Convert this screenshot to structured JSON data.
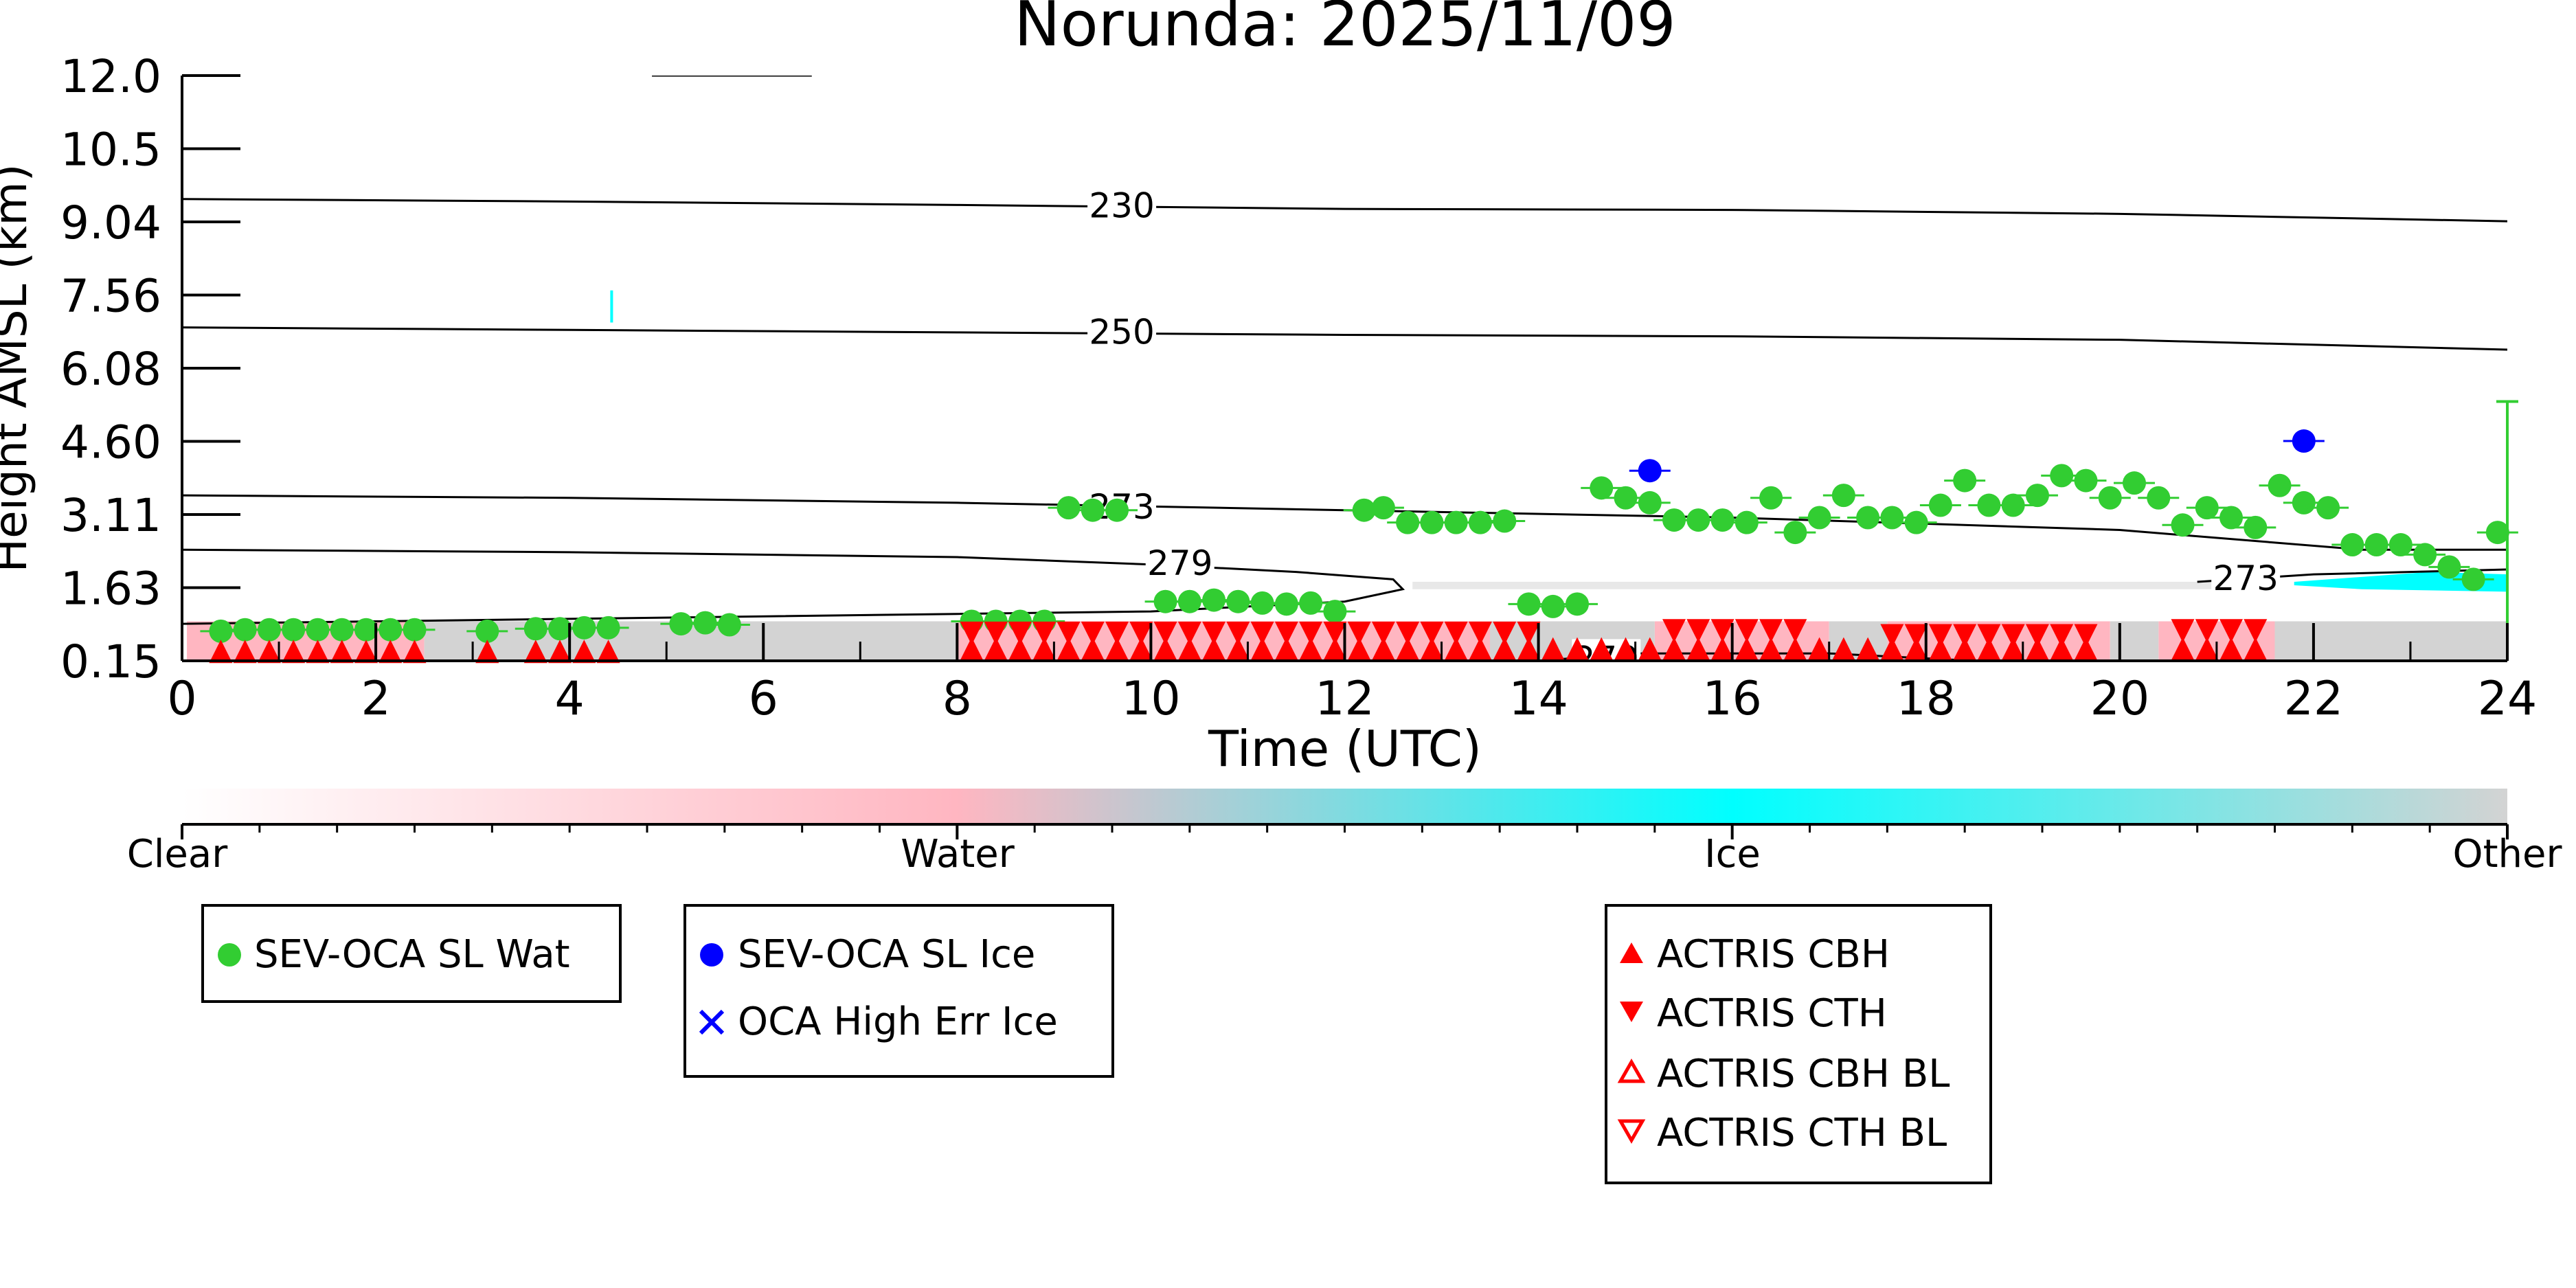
{
  "chart_data": {
    "type": "scatter",
    "title": "Norunda: 2025/11/09",
    "xlabel": "Time (UTC)",
    "ylabel": "Height AMSL (km)",
    "xlim": [
      0,
      24
    ],
    "ylim": [
      0.15,
      12.0
    ],
    "x_ticks": [
      "0",
      "2",
      "4",
      "6",
      "8",
      "10",
      "12",
      "14",
      "16",
      "18",
      "20",
      "22",
      "24"
    ],
    "y_ticks": [
      "0.15",
      "1.63",
      "3.11",
      "4.60",
      "6.08",
      "7.56",
      "9.04",
      "10.5",
      "12.0"
    ],
    "grid": false,
    "colorbar": {
      "labels": [
        "Clear",
        "Water",
        "Ice",
        "Other"
      ],
      "colors": [
        "#ffffff",
        "#ffb6c1",
        "#00ffff",
        "#d3d3d3"
      ]
    },
    "contours": [
      {
        "label": "230",
        "points": [
          [
            0,
            9.5
          ],
          [
            4,
            9.45
          ],
          [
            8,
            9.38
          ],
          [
            12,
            9.3
          ],
          [
            16,
            9.28
          ],
          [
            20,
            9.2
          ],
          [
            24,
            9.05
          ]
        ]
      },
      {
        "label": "250",
        "points": [
          [
            0,
            6.9
          ],
          [
            4,
            6.85
          ],
          [
            8,
            6.8
          ],
          [
            12,
            6.75
          ],
          [
            16,
            6.72
          ],
          [
            20,
            6.65
          ],
          [
            24,
            6.45
          ]
        ]
      },
      {
        "label": "273",
        "points": [
          [
            0,
            3.5
          ],
          [
            4,
            3.45
          ],
          [
            8,
            3.35
          ],
          [
            12,
            3.2
          ],
          [
            16,
            3.05
          ],
          [
            20,
            2.8
          ],
          [
            22.5,
            2.4
          ],
          [
            24,
            2.4
          ]
        ]
      },
      {
        "label": "279",
        "points": [
          [
            0,
            2.4
          ],
          [
            4,
            2.35
          ],
          [
            8,
            2.25
          ],
          [
            10,
            2.1
          ],
          [
            11.5,
            1.95
          ],
          [
            12.5,
            1.8
          ],
          [
            12.6,
            1.6
          ],
          [
            12,
            1.35
          ],
          [
            10,
            1.15
          ],
          [
            8,
            1.1
          ],
          [
            4,
            1.0
          ],
          [
            0,
            0.9
          ]
        ]
      },
      {
        "label": "273",
        "points": [
          [
            20.8,
            1.75
          ],
          [
            22,
            1.9
          ],
          [
            24,
            2.0
          ]
        ]
      },
      {
        "label": "279",
        "points": [
          [
            14,
            0.15
          ],
          [
            15,
            0.3
          ],
          [
            17,
            0.3
          ],
          [
            18.5,
            0.15
          ]
        ]
      }
    ],
    "series": [
      {
        "name": "SEV-OCA SL Wat",
        "color": "#32cd32",
        "marker": "circle",
        "x": [
          0.4,
          0.65,
          0.9,
          1.15,
          1.4,
          1.65,
          1.9,
          2.15,
          2.4,
          3.15,
          3.65,
          3.9,
          4.15,
          4.4,
          5.15,
          5.4,
          5.65,
          8.15,
          8.4,
          8.65,
          8.9,
          9.15,
          9.4,
          9.65,
          10.15,
          10.4,
          10.65,
          10.9,
          11.15,
          11.4,
          11.65,
          11.9,
          12.2,
          12.4,
          12.65,
          12.9,
          13.15,
          13.4,
          13.65,
          13.9,
          14.15,
          14.4,
          14.65,
          14.9,
          15.15,
          15.4,
          15.65,
          15.9,
          16.15,
          16.4,
          16.65,
          16.9,
          17.15,
          17.4,
          17.65,
          17.9,
          18.15,
          18.4,
          18.65,
          18.9,
          19.15,
          19.4,
          19.65,
          19.9,
          20.15,
          20.4,
          20.65,
          20.9,
          21.15,
          21.4,
          21.65,
          21.9,
          22.15,
          22.4,
          22.65,
          22.9,
          23.15,
          23.4,
          23.65,
          23.9
        ],
        "y": [
          0.75,
          0.78,
          0.78,
          0.78,
          0.78,
          0.78,
          0.78,
          0.78,
          0.78,
          0.75,
          0.8,
          0.8,
          0.82,
          0.82,
          0.9,
          0.92,
          0.88,
          0.95,
          0.95,
          0.95,
          0.95,
          3.25,
          3.2,
          3.2,
          1.35,
          1.35,
          1.38,
          1.35,
          1.32,
          1.3,
          1.32,
          1.15,
          3.2,
          3.25,
          2.95,
          2.95,
          2.95,
          2.95,
          2.98,
          1.3,
          1.25,
          1.3,
          3.65,
          3.45,
          3.35,
          3.0,
          3.0,
          3.0,
          2.95,
          3.45,
          2.75,
          3.05,
          3.5,
          3.05,
          3.05,
          2.95,
          3.3,
          3.8,
          3.3,
          3.3,
          3.5,
          3.9,
          3.8,
          3.45,
          3.75,
          3.45,
          2.9,
          3.25,
          3.05,
          2.85,
          3.7,
          3.35,
          3.25,
          2.5,
          2.5,
          2.5,
          2.3,
          2.05,
          1.8,
          2.75
        ]
      },
      {
        "name": "SEV-OCA SL Ice",
        "color": "#0000ff",
        "marker": "circle",
        "x": [
          15.15,
          21.9
        ],
        "y": [
          4.0,
          4.6
        ]
      },
      {
        "name": "OCA High Err Ice",
        "color": "#0000ff",
        "marker": "x",
        "x": [],
        "y": []
      },
      {
        "name": "ACTRIS CBH",
        "color": "#ff0000",
        "marker": "triangle-up",
        "x": [
          0.4,
          0.65,
          0.9,
          1.15,
          1.4,
          1.65,
          1.9,
          2.15,
          2.4,
          3.15,
          3.65,
          3.9,
          4.15,
          4.4,
          8.15,
          8.4,
          8.65,
          8.9,
          9.15,
          9.4,
          9.65,
          9.9,
          10.15,
          10.4,
          10.65,
          10.9,
          11.15,
          11.4,
          11.65,
          11.9,
          12.15,
          12.4,
          12.65,
          12.9,
          13.15,
          13.4,
          13.65,
          13.9,
          14.15,
          14.4,
          14.65,
          14.9,
          15.15,
          15.4,
          15.65,
          15.9,
          16.15,
          16.4,
          16.65,
          16.9,
          17.15,
          17.4,
          17.65,
          17.9,
          18.15,
          18.4,
          18.65,
          18.9,
          19.15,
          19.4,
          19.65,
          20.65,
          20.9,
          21.15,
          21.4
        ],
        "y": [
          0.3,
          0.3,
          0.3,
          0.3,
          0.3,
          0.3,
          0.3,
          0.3,
          0.3,
          0.3,
          0.3,
          0.3,
          0.3,
          0.3,
          0.35,
          0.35,
          0.35,
          0.35,
          0.35,
          0.35,
          0.35,
          0.35,
          0.35,
          0.35,
          0.35,
          0.35,
          0.35,
          0.35,
          0.35,
          0.35,
          0.35,
          0.35,
          0.35,
          0.35,
          0.35,
          0.35,
          0.35,
          0.35,
          0.35,
          0.35,
          0.35,
          0.35,
          0.35,
          0.35,
          0.35,
          0.35,
          0.35,
          0.35,
          0.35,
          0.35,
          0.35,
          0.35,
          0.35,
          0.35,
          0.35,
          0.35,
          0.35,
          0.35,
          0.35,
          0.35,
          0.35,
          0.35,
          0.35,
          0.35,
          0.35
        ]
      },
      {
        "name": "ACTRIS CTH",
        "color": "#ff0000",
        "marker": "triangle-down",
        "x": [
          8.15,
          8.4,
          8.65,
          8.9,
          9.15,
          9.4,
          9.65,
          9.9,
          10.15,
          10.4,
          10.65,
          10.9,
          11.15,
          11.4,
          11.65,
          11.9,
          12.15,
          12.4,
          12.65,
          12.9,
          13.15,
          13.4,
          13.65,
          13.9,
          15.4,
          15.65,
          15.9,
          16.15,
          16.4,
          16.65,
          17.65,
          17.9,
          18.15,
          18.4,
          18.65,
          18.9,
          19.15,
          19.4,
          19.65,
          20.65,
          20.9,
          21.15,
          21.4
        ],
        "y": [
          0.75,
          0.75,
          0.75,
          0.75,
          0.75,
          0.75,
          0.75,
          0.75,
          0.75,
          0.75,
          0.75,
          0.75,
          0.75,
          0.75,
          0.75,
          0.75,
          0.75,
          0.75,
          0.75,
          0.75,
          0.75,
          0.75,
          0.75,
          0.75,
          0.8,
          0.8,
          0.8,
          0.8,
          0.8,
          0.8,
          0.7,
          0.7,
          0.7,
          0.7,
          0.7,
          0.7,
          0.7,
          0.7,
          0.7,
          0.8,
          0.8,
          0.8,
          0.8
        ]
      },
      {
        "name": "ACTRIS CBH BL",
        "color": "#ff0000",
        "marker": "triangle-up-open",
        "x": [],
        "y": []
      },
      {
        "name": "ACTRIS CTH BL",
        "color": "#ff0000",
        "marker": "triangle-down-open",
        "x": [],
        "y": []
      }
    ],
    "legends": [
      [
        "SEV-OCA SL Wat"
      ],
      [
        "SEV-OCA SL Ice",
        "OCA High Err Ice"
      ],
      [
        "ACTRIS CBH",
        "ACTRIS CTH",
        "ACTRIS CBH BL",
        "ACTRIS CTH BL"
      ]
    ],
    "error_bar": {
      "x": 24,
      "y_low": 0.15,
      "y_high": 5.4
    }
  }
}
